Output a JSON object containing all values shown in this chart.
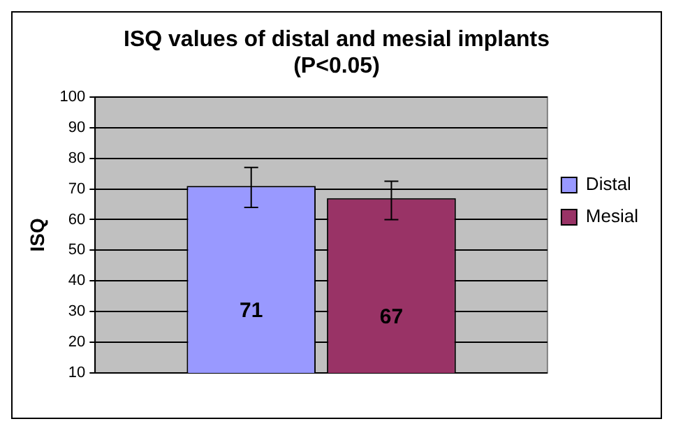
{
  "chart_data": {
    "type": "bar",
    "title": "ISQ values of distal and mesial implants\n(P<0.05)",
    "ylabel": "ISQ",
    "categories": [
      null
    ],
    "series": [
      {
        "name": "Distal",
        "color": "#9999ff",
        "values": [
          71
        ],
        "errors": [
          [
            64,
            77
          ]
        ]
      },
      {
        "name": "Mesial",
        "color": "#993366",
        "values": [
          67
        ],
        "errors": [
          [
            60,
            72.5
          ]
        ]
      }
    ],
    "ylim": [
      10,
      100
    ],
    "yticks": [
      10,
      20,
      30,
      40,
      50,
      60,
      70,
      80,
      90,
      100
    ],
    "grid": "y",
    "legend": "right",
    "data_labels": true
  }
}
